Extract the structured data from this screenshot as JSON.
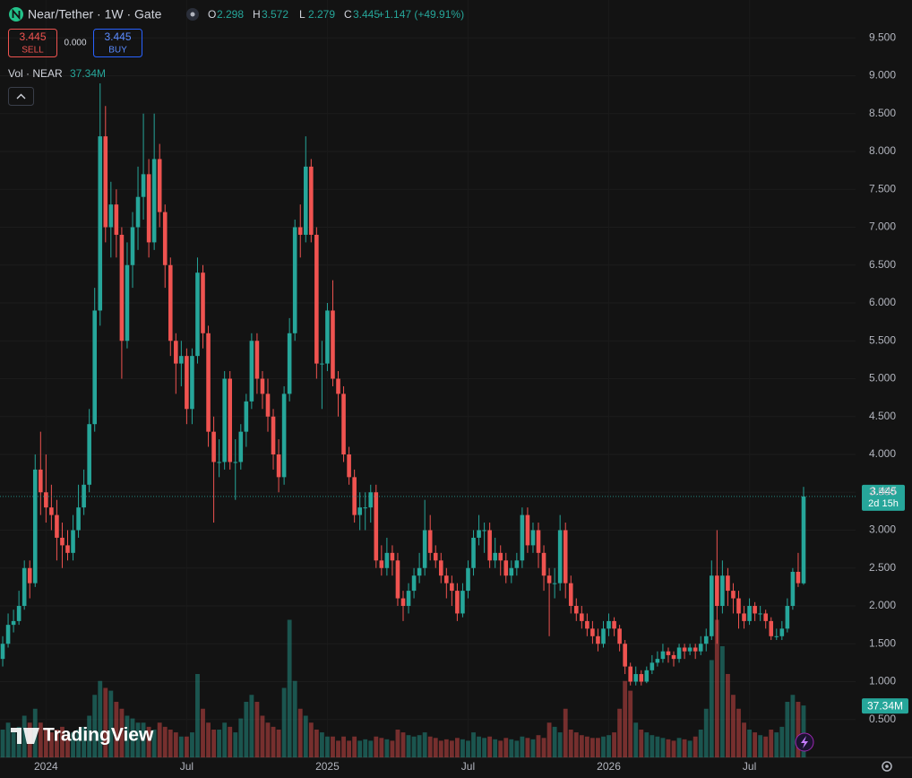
{
  "chart_data": {
    "type": "candlestick",
    "title": "Near/Tether · 1W · Gate",
    "ohlc_labels": [
      "O",
      "H",
      "L",
      "C"
    ],
    "change_label": "+1.147 (+49.91%)",
    "sell": {
      "price": 3.445,
      "label": "SELL"
    },
    "spread": "0.000",
    "buy": {
      "price": 3.445,
      "label": "BUY"
    },
    "volume_title": "Vol · NEAR",
    "volume_label": "37.34M",
    "countdown": "2d 15h",
    "logo": "TradingView",
    "up_color": "#26a69a",
    "down_color": "#ef5350",
    "ylim": [
      0,
      10
    ],
    "yticks": [
      {
        "value": 0.5,
        "label": "0.500"
      },
      {
        "value": 1,
        "label": "1.000"
      },
      {
        "value": 1.5,
        "label": "1.500"
      },
      {
        "value": 2,
        "label": "2.000"
      },
      {
        "value": 2.5,
        "label": "2.500"
      },
      {
        "value": 3,
        "label": "3.000"
      },
      {
        "value": 3.5,
        "label": "3.500"
      },
      {
        "value": 4,
        "label": "4.000"
      },
      {
        "value": 4.5,
        "label": "4.500"
      },
      {
        "value": 5,
        "label": "5.000"
      },
      {
        "value": 5.5,
        "label": "5.500"
      },
      {
        "value": 6,
        "label": "6.000"
      },
      {
        "value": 6.5,
        "label": "6.500"
      },
      {
        "value": 7,
        "label": "7.000"
      },
      {
        "value": 7.5,
        "label": "7.500"
      },
      {
        "value": 8,
        "label": "8.000"
      },
      {
        "value": 8.5,
        "label": "8.500"
      },
      {
        "value": 9,
        "label": "9.000"
      },
      {
        "value": 9.5,
        "label": "9.500"
      }
    ],
    "xticks": [
      {
        "value": 8,
        "label": "2024"
      },
      {
        "value": 34,
        "label": "Jul"
      },
      {
        "value": 60,
        "label": "2025"
      },
      {
        "value": 86,
        "label": "Jul"
      },
      {
        "value": 112,
        "label": "2026"
      },
      {
        "value": 138,
        "label": "Jul"
      }
    ],
    "volume_ylim": [
      0,
      545
    ],
    "candles": [
      [
        1.3,
        1.6,
        1.2,
        1.5
      ],
      [
        1.5,
        1.9,
        1.45,
        1.75
      ],
      [
        1.75,
        1.95,
        1.65,
        1.8
      ],
      [
        1.8,
        2.2,
        1.75,
        2.0
      ],
      [
        2.0,
        2.6,
        1.95,
        2.5
      ],
      [
        2.5,
        2.6,
        2.1,
        2.3
      ],
      [
        2.3,
        4.0,
        2.25,
        3.8
      ],
      [
        3.8,
        4.3,
        3.2,
        3.5
      ],
      [
        3.5,
        4.0,
        3.1,
        3.3
      ],
      [
        3.3,
        3.6,
        3.0,
        3.2
      ],
      [
        3.2,
        3.4,
        2.6,
        2.9
      ],
      [
        2.9,
        3.1,
        2.5,
        2.8
      ],
      [
        2.8,
        3.0,
        2.6,
        2.7
      ],
      [
        2.7,
        3.2,
        2.6,
        3.0
      ],
      [
        3.0,
        3.6,
        2.9,
        3.3
      ],
      [
        3.3,
        3.8,
        3.2,
        3.6
      ],
      [
        3.6,
        4.6,
        3.5,
        4.4
      ],
      [
        4.4,
        6.2,
        4.3,
        5.9
      ],
      [
        5.9,
        8.9,
        5.7,
        8.2
      ],
      [
        8.2,
        8.6,
        6.8,
        7.0
      ],
      [
        7.0,
        7.6,
        6.6,
        7.3
      ],
      [
        7.3,
        7.5,
        6.6,
        6.9
      ],
      [
        6.9,
        7.0,
        5.0,
        5.5
      ],
      [
        5.5,
        6.8,
        5.4,
        6.5
      ],
      [
        6.5,
        7.2,
        6.2,
        7.0
      ],
      [
        7.0,
        7.8,
        6.7,
        7.4
      ],
      [
        7.4,
        8.5,
        7.1,
        7.7
      ],
      [
        7.7,
        7.9,
        6.6,
        6.8
      ],
      [
        6.8,
        8.5,
        6.7,
        7.9
      ],
      [
        7.9,
        8.1,
        7.0,
        7.2
      ],
      [
        7.2,
        7.3,
        6.2,
        6.5
      ],
      [
        6.5,
        6.6,
        5.3,
        5.5
      ],
      [
        5.5,
        5.6,
        4.8,
        5.2
      ],
      [
        5.2,
        5.5,
        4.9,
        5.3
      ],
      [
        5.3,
        5.4,
        4.4,
        4.6
      ],
      [
        4.6,
        5.4,
        4.4,
        5.3
      ],
      [
        5.3,
        6.6,
        5.2,
        6.4
      ],
      [
        6.4,
        6.5,
        5.4,
        5.6
      ],
      [
        5.6,
        5.7,
        4.1,
        4.3
      ],
      [
        4.3,
        4.5,
        3.1,
        3.9
      ],
      [
        3.9,
        4.2,
        3.7,
        3.9
      ],
      [
        3.9,
        5.1,
        3.8,
        5.0
      ],
      [
        5.0,
        5.1,
        3.8,
        3.9
      ],
      [
        3.9,
        4.2,
        3.4,
        3.9
      ],
      [
        3.9,
        4.4,
        3.8,
        4.3
      ],
      [
        4.3,
        4.8,
        4.1,
        4.7
      ],
      [
        4.7,
        5.6,
        4.6,
        5.5
      ],
      [
        5.5,
        5.6,
        4.8,
        5.0
      ],
      [
        5.0,
        5.1,
        4.6,
        4.8
      ],
      [
        4.8,
        5.0,
        4.3,
        4.5
      ],
      [
        4.5,
        4.6,
        3.8,
        4.0
      ],
      [
        4.0,
        4.2,
        3.5,
        3.7
      ],
      [
        3.7,
        4.9,
        3.6,
        4.8
      ],
      [
        4.8,
        5.8,
        4.7,
        5.6
      ],
      [
        5.6,
        7.1,
        5.5,
        7.0
      ],
      [
        7.0,
        7.3,
        6.6,
        6.9
      ],
      [
        6.9,
        8.2,
        6.8,
        7.8
      ],
      [
        7.8,
        7.9,
        6.8,
        6.9
      ],
      [
        6.9,
        7.0,
        5.0,
        5.2
      ],
      [
        5.2,
        5.5,
        4.6,
        5.2
      ],
      [
        5.2,
        6.0,
        5.1,
        5.9
      ],
      [
        5.9,
        6.3,
        4.9,
        5.0
      ],
      [
        5.0,
        5.1,
        4.5,
        4.8
      ],
      [
        4.8,
        4.9,
        3.9,
        4.0
      ],
      [
        4.0,
        4.1,
        3.6,
        3.7
      ],
      [
        3.7,
        3.8,
        3.1,
        3.2
      ],
      [
        3.2,
        3.5,
        3.0,
        3.3
      ],
      [
        3.3,
        3.5,
        3.0,
        3.3
      ],
      [
        3.3,
        3.6,
        3.1,
        3.5
      ],
      [
        3.5,
        3.6,
        2.5,
        2.6
      ],
      [
        2.6,
        2.8,
        2.4,
        2.5
      ],
      [
        2.5,
        2.9,
        2.4,
        2.7
      ],
      [
        2.7,
        2.8,
        2.4,
        2.6
      ],
      [
        2.6,
        2.7,
        2.0,
        2.1
      ],
      [
        2.1,
        2.2,
        1.8,
        2.0
      ],
      [
        2.0,
        2.3,
        1.9,
        2.2
      ],
      [
        2.2,
        2.5,
        2.1,
        2.4
      ],
      [
        2.4,
        2.7,
        2.3,
        2.5
      ],
      [
        2.5,
        3.4,
        2.4,
        3.0
      ],
      [
        3.0,
        3.2,
        2.6,
        2.7
      ],
      [
        2.7,
        2.8,
        2.5,
        2.6
      ],
      [
        2.6,
        2.7,
        2.3,
        2.4
      ],
      [
        2.4,
        2.5,
        2.1,
        2.3
      ],
      [
        2.3,
        2.4,
        2.0,
        2.2
      ],
      [
        2.2,
        2.3,
        1.8,
        1.9
      ],
      [
        1.9,
        2.3,
        1.85,
        2.2
      ],
      [
        2.2,
        2.6,
        2.1,
        2.5
      ],
      [
        2.5,
        3.0,
        2.4,
        2.9
      ],
      [
        2.9,
        3.2,
        2.8,
        3.0
      ],
      [
        3.0,
        3.1,
        2.7,
        3.0
      ],
      [
        3.0,
        3.1,
        2.5,
        2.6
      ],
      [
        2.6,
        2.9,
        2.5,
        2.7
      ],
      [
        2.7,
        2.8,
        2.4,
        2.6
      ],
      [
        2.6,
        2.7,
        2.3,
        2.4
      ],
      [
        2.4,
        2.6,
        2.3,
        2.5
      ],
      [
        2.5,
        2.7,
        2.4,
        2.6
      ],
      [
        2.6,
        3.3,
        2.5,
        3.2
      ],
      [
        3.2,
        3.3,
        2.7,
        2.8
      ],
      [
        2.8,
        3.1,
        2.7,
        3.0
      ],
      [
        3.0,
        3.1,
        2.5,
        2.7
      ],
      [
        2.7,
        2.8,
        2.2,
        2.4
      ],
      [
        2.4,
        2.5,
        1.6,
        2.3
      ],
      [
        2.3,
        2.5,
        2.1,
        2.3
      ],
      [
        2.3,
        3.2,
        2.2,
        3.0
      ],
      [
        3.0,
        3.1,
        2.1,
        2.3
      ],
      [
        2.3,
        2.4,
        1.9,
        2.0
      ],
      [
        2.0,
        2.1,
        1.8,
        1.9
      ],
      [
        1.9,
        2.0,
        1.7,
        1.8
      ],
      [
        1.8,
        1.9,
        1.6,
        1.7
      ],
      [
        1.7,
        1.8,
        1.5,
        1.6
      ],
      [
        1.6,
        1.7,
        1.4,
        1.5
      ],
      [
        1.5,
        1.8,
        1.45,
        1.7
      ],
      [
        1.7,
        1.9,
        1.6,
        1.8
      ],
      [
        1.8,
        1.85,
        1.6,
        1.7
      ],
      [
        1.7,
        1.75,
        1.4,
        1.5
      ],
      [
        1.5,
        1.55,
        1.1,
        1.2
      ],
      [
        1.2,
        1.25,
        0.95,
        1.0
      ],
      [
        1.0,
        1.2,
        0.95,
        1.1
      ],
      [
        1.1,
        1.15,
        0.95,
        1.0
      ],
      [
        1.0,
        1.2,
        0.98,
        1.15
      ],
      [
        1.15,
        1.35,
        1.1,
        1.25
      ],
      [
        1.25,
        1.4,
        1.2,
        1.3
      ],
      [
        1.3,
        1.5,
        1.25,
        1.4
      ],
      [
        1.4,
        1.45,
        1.25,
        1.35
      ],
      [
        1.35,
        1.4,
        1.2,
        1.3
      ],
      [
        1.3,
        1.5,
        1.25,
        1.45
      ],
      [
        1.45,
        1.5,
        1.3,
        1.4
      ],
      [
        1.4,
        1.5,
        1.35,
        1.45
      ],
      [
        1.45,
        1.5,
        1.3,
        1.4
      ],
      [
        1.4,
        1.6,
        1.35,
        1.5
      ],
      [
        1.5,
        1.7,
        1.4,
        1.6
      ],
      [
        1.6,
        2.6,
        1.55,
        2.4
      ],
      [
        2.4,
        3.0,
        1.5,
        2.0
      ],
      [
        2.0,
        2.6,
        1.9,
        2.4
      ],
      [
        2.4,
        2.5,
        2.0,
        2.2
      ],
      [
        2.2,
        2.3,
        1.9,
        2.1
      ],
      [
        2.1,
        2.2,
        1.7,
        1.9
      ],
      [
        1.9,
        2.0,
        1.7,
        1.8
      ],
      [
        1.8,
        2.1,
        1.75,
        2.0
      ],
      [
        2.0,
        2.05,
        1.8,
        1.9
      ],
      [
        1.9,
        2.0,
        1.8,
        1.9
      ],
      [
        1.9,
        1.95,
        1.7,
        1.8
      ],
      [
        1.8,
        1.85,
        1.55,
        1.6
      ],
      [
        1.6,
        1.7,
        1.55,
        1.6
      ],
      [
        1.6,
        1.8,
        1.55,
        1.7
      ],
      [
        1.7,
        2.1,
        1.65,
        2.0
      ],
      [
        2.0,
        2.5,
        1.95,
        2.45
      ],
      [
        2.45,
        2.7,
        2.25,
        2.3
      ],
      [
        2.298,
        3.572,
        2.279,
        3.445
      ]
    ],
    "volumes": [
      20,
      25,
      18,
      22,
      30,
      25,
      35,
      25,
      20,
      18,
      20,
      22,
      15,
      18,
      20,
      22,
      30,
      45,
      55,
      50,
      48,
      40,
      35,
      30,
      28,
      25,
      25,
      22,
      20,
      25,
      22,
      20,
      18,
      15,
      15,
      18,
      60,
      35,
      25,
      20,
      20,
      25,
      22,
      18,
      28,
      40,
      45,
      40,
      30,
      25,
      22,
      20,
      50,
      99,
      55,
      35,
      30,
      25,
      20,
      18,
      15,
      15,
      12,
      15,
      12,
      15,
      12,
      13,
      12,
      15,
      14,
      13,
      12,
      20,
      18,
      16,
      15,
      16,
      18,
      15,
      14,
      12,
      13,
      12,
      14,
      13,
      12,
      18,
      15,
      14,
      15,
      13,
      12,
      14,
      13,
      12,
      15,
      14,
      13,
      16,
      14,
      25,
      22,
      18,
      35,
      20,
      18,
      16,
      15,
      14,
      14,
      15,
      16,
      18,
      35,
      55,
      48,
      25,
      20,
      18,
      16,
      15,
      14,
      13,
      12,
      14,
      13,
      12,
      15,
      20,
      35,
      70,
      99,
      80,
      60,
      45,
      35,
      25,
      20,
      18,
      16,
      15,
      20,
      18,
      22,
      40,
      45,
      40,
      37.34
    ]
  }
}
